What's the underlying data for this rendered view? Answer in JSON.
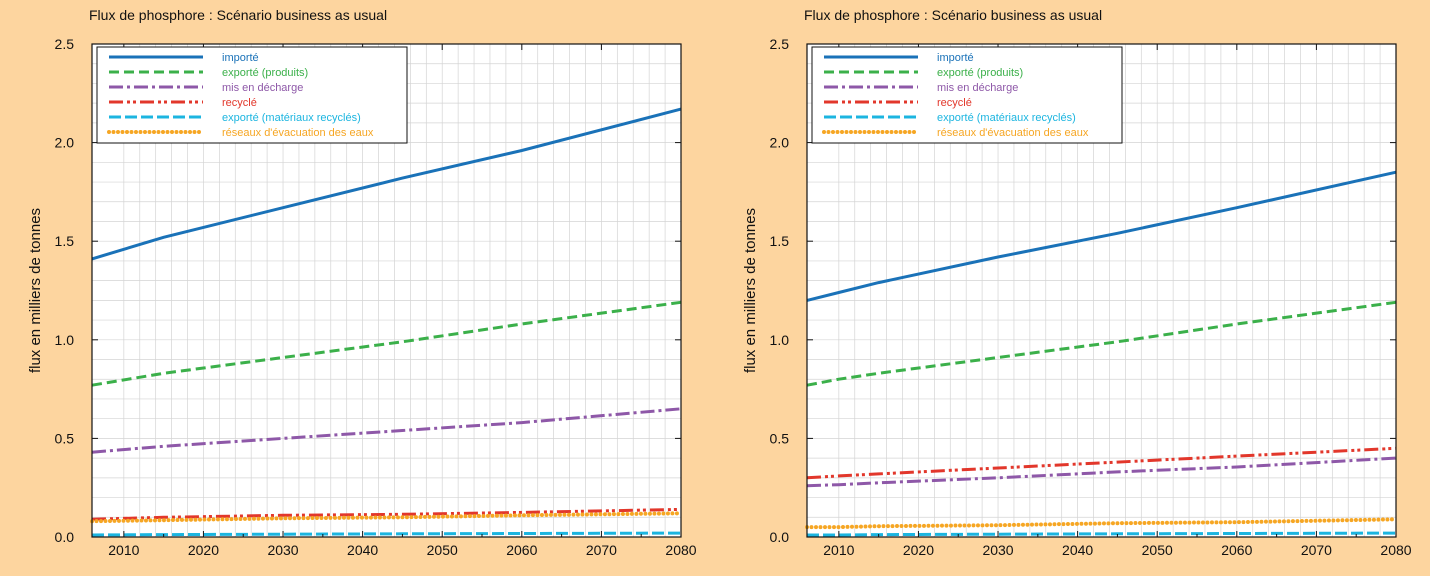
{
  "colors": {
    "background": "#fdd59f",
    "plot_background": "#ffffff",
    "grid": "#d4d4d4",
    "importe": "#1a72b8",
    "exporte_produits": "#3bb04a",
    "mis_en_decharge": "#8e58a8",
    "recycle": "#e2372b",
    "exporte_materiaux": "#1cb5e0",
    "reseaux": "#f6a623"
  },
  "chart_data": [
    {
      "type": "line",
      "title": "Flux de phosphore : Scénario business as usual",
      "xlabel": "",
      "ylabel": "flux en milliers de tonnes",
      "xlim": [
        2006,
        2080
      ],
      "ylim": [
        0,
        2.5
      ],
      "xticks": [
        "2010",
        "2020",
        "2030",
        "2040",
        "2050",
        "2060",
        "2070",
        "2080"
      ],
      "yticks": [
        "0.0",
        "0.5",
        "1.0",
        "1.5",
        "2.0",
        "2.5"
      ],
      "grid": true,
      "legend_position": "top-left",
      "x": [
        2006,
        2015,
        2030,
        2045,
        2060,
        2080
      ],
      "series": [
        {
          "name": "importé",
          "style": "solid",
          "color_key": "importe",
          "values": [
            1.41,
            1.52,
            1.67,
            1.82,
            1.96,
            2.17
          ]
        },
        {
          "name": "exporté (produits)",
          "style": "dashed",
          "color_key": "exporte_produits",
          "values": [
            0.77,
            0.83,
            0.91,
            0.99,
            1.08,
            1.19
          ]
        },
        {
          "name": "mis en décharge",
          "style": "dashdot",
          "color_key": "mis_en_decharge",
          "values": [
            0.43,
            0.46,
            0.5,
            0.54,
            0.58,
            0.65
          ]
        },
        {
          "name": "recyclé",
          "style": "dashdotdot",
          "color_key": "recycle",
          "values": [
            0.09,
            0.1,
            0.11,
            0.115,
            0.125,
            0.14
          ]
        },
        {
          "name": "exporté (matériaux recyclés)",
          "style": "longdash",
          "color_key": "exporte_materiaux",
          "values": [
            0.01,
            0.012,
            0.014,
            0.016,
            0.018,
            0.02
          ]
        },
        {
          "name": "réseaux d'évacuation des eaux",
          "style": "dotted",
          "color_key": "reseaux",
          "values": [
            0.08,
            0.085,
            0.095,
            0.1,
            0.11,
            0.12
          ]
        }
      ]
    },
    {
      "type": "line",
      "title": "Flux de phosphore : Scénario business as usual",
      "xlabel": "",
      "ylabel": "flux en milliers de tonnes",
      "xlim": [
        2006,
        2080
      ],
      "ylim": [
        0,
        2.5
      ],
      "xticks": [
        "2010",
        "2020",
        "2030",
        "2040",
        "2050",
        "2060",
        "2070",
        "2080"
      ],
      "yticks": [
        "0.0",
        "0.5",
        "1.0",
        "1.5",
        "2.0",
        "2.5"
      ],
      "grid": true,
      "legend_position": "top-left",
      "x": [
        2006,
        2010,
        2015,
        2030,
        2045,
        2060,
        2080
      ],
      "series": [
        {
          "name": "importé",
          "style": "solid",
          "color_key": "importe",
          "values": [
            1.2,
            1.24,
            1.29,
            1.42,
            1.54,
            1.67,
            1.85
          ]
        },
        {
          "name": "exporté (produits)",
          "style": "dashed",
          "color_key": "exporte_produits",
          "values": [
            0.77,
            0.8,
            0.83,
            0.91,
            0.99,
            1.08,
            1.19
          ]
        },
        {
          "name": "mis en décharge",
          "style": "dashdot",
          "color_key": "mis_en_decharge",
          "values": [
            0.26,
            0.265,
            0.275,
            0.3,
            0.33,
            0.355,
            0.4
          ]
        },
        {
          "name": "recyclé",
          "style": "dashdotdot",
          "color_key": "recycle",
          "values": [
            0.3,
            0.31,
            0.32,
            0.35,
            0.38,
            0.41,
            0.45
          ]
        },
        {
          "name": "exporté (matériaux recyclés)",
          "style": "longdash",
          "color_key": "exporte_materiaux",
          "values": [
            0.01,
            0.01,
            0.012,
            0.014,
            0.016,
            0.018,
            0.02
          ]
        },
        {
          "name": "réseaux d'évacuation des eaux",
          "style": "dotted",
          "color_key": "reseaux",
          "values": [
            0.05,
            0.05,
            0.055,
            0.06,
            0.07,
            0.075,
            0.09
          ]
        }
      ]
    }
  ]
}
